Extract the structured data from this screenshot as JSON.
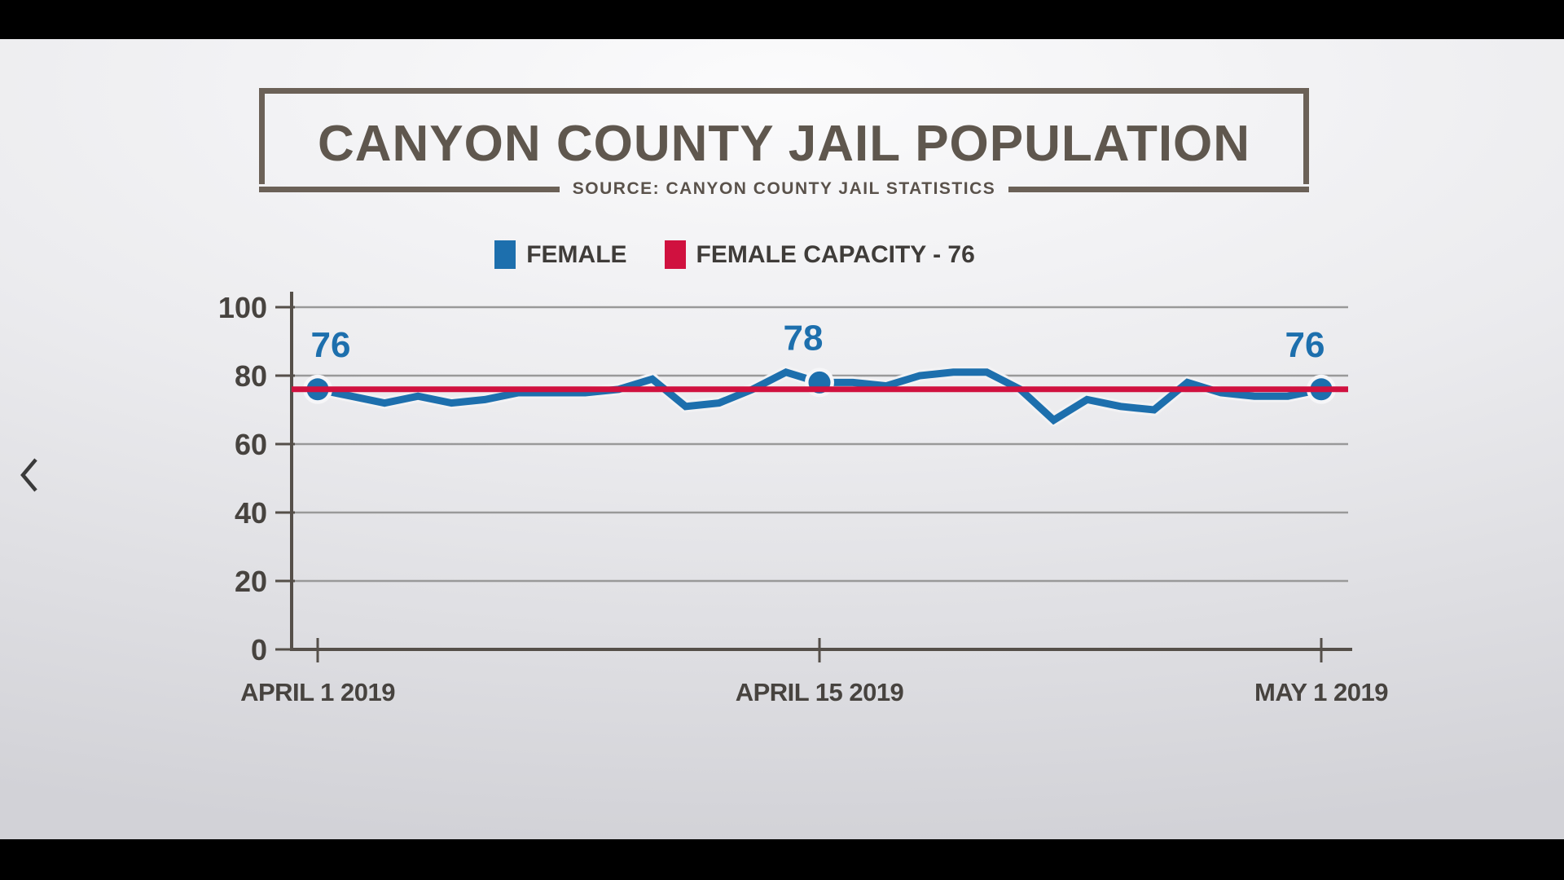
{
  "header": {
    "title": "CANYON COUNTY JAIL POPULATION",
    "source": "SOURCE: CANYON COUNTY JAIL STATISTICS"
  },
  "legend": [
    {
      "label": "FEMALE",
      "color": "#1d6fad"
    },
    {
      "label": "FEMALE CAPACITY - 76",
      "color": "#d0113f"
    }
  ],
  "nav": {
    "back_chevron": "previous-slide"
  },
  "colors": {
    "background_top": "#fbfbfc",
    "background_bottom": "#d2d2d7",
    "letterbox": "#000000",
    "title": "#5f574e",
    "box_border": "#6b6157",
    "source_text": "#5a524b",
    "legend_text": "#3f3c39",
    "axis_text": "#47433f",
    "axis_line": "#554f49",
    "gridline": "#999999",
    "female_line": "#1d6fad",
    "capacity_line": "#d0113f",
    "chevron": "#3a3a3a"
  },
  "chart_data": {
    "type": "line",
    "title": "CANYON COUNTY JAIL POPULATION",
    "xlabel": "",
    "ylabel": "",
    "ylim": [
      0,
      100
    ],
    "y_ticks": [
      0,
      20,
      40,
      60,
      80,
      100
    ],
    "grid": true,
    "legend_position": "top",
    "x_ticks": [
      {
        "index": 0,
        "label": "APRIL 1 2019"
      },
      {
        "index": 15,
        "label": "APRIL 15 2019"
      },
      {
        "index": 30,
        "label": "MAY 1 2019"
      }
    ],
    "series": [
      {
        "name": "FEMALE",
        "type": "line",
        "color": "#1d6fad",
        "values": [
          76,
          74,
          72,
          74,
          72,
          73,
          75,
          75,
          75,
          76,
          79,
          71,
          72,
          76,
          81,
          78,
          78,
          77,
          80,
          81,
          81,
          76,
          67,
          73,
          71,
          70,
          78,
          75,
          74,
          74,
          76
        ]
      },
      {
        "name": "FEMALE CAPACITY - 76",
        "type": "constant",
        "color": "#d0113f",
        "value": 76
      }
    ],
    "point_labels": [
      {
        "index": 0,
        "text": "76"
      },
      {
        "index": 15,
        "text": "78"
      },
      {
        "index": 30,
        "text": "76"
      }
    ]
  }
}
